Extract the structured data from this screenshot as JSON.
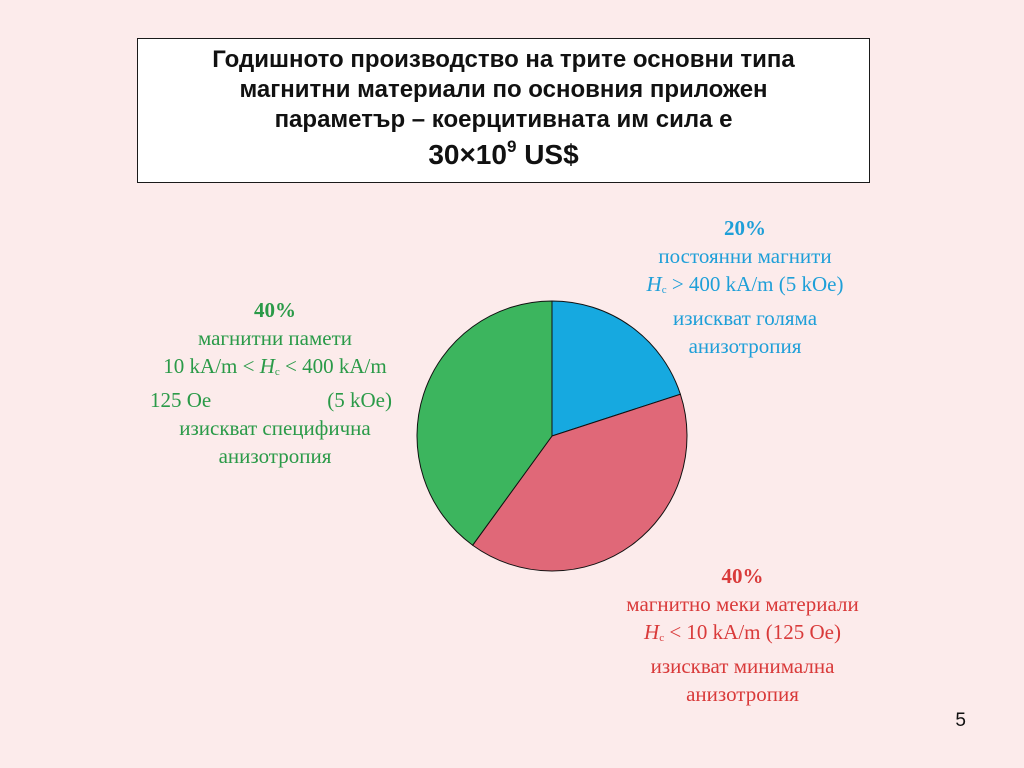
{
  "title": {
    "line1": "Годишното производство на трите основни типа",
    "line2": "магнитни материали по основния приложен",
    "line3": "параметър – коерцитивната им сила е",
    "amount_base": "30×10",
    "amount_exp": "9",
    "amount_unit": " US$"
  },
  "chart_data": {
    "type": "pie",
    "slices": [
      {
        "value": 20,
        "color": "#16a9e0",
        "pct_label": "20%",
        "lines": [
          "постоянни магнити",
          "изискват голяма",
          "анизотропия"
        ],
        "hc_symbol": "H",
        "hc_sub": "c",
        "hc_rest": " > 400 kA/m (5 kOe)"
      },
      {
        "value": 40,
        "color": "#e06878",
        "pct_label": "40%",
        "lines": [
          "магнитно меки материали",
          "изискват минимална",
          "анизотропия"
        ],
        "hc_symbol": "H",
        "hc_sub": "c",
        "hc_rest": " < 10  kA/m (125 Oe)"
      },
      {
        "value": 40,
        "color": "#3cb55e",
        "pct_label": "40%",
        "lines": [
          "магнитни памети",
          "изискват специфична",
          "анизотропия"
        ],
        "hc_pre": "10  kA/m < ",
        "hc_symbol": "H",
        "hc_sub": "c",
        "hc_rest": " < 400 kA/m",
        "row_left": "125 Oe",
        "row_right": "(5 kOe)"
      }
    ]
  },
  "page_number": "5"
}
